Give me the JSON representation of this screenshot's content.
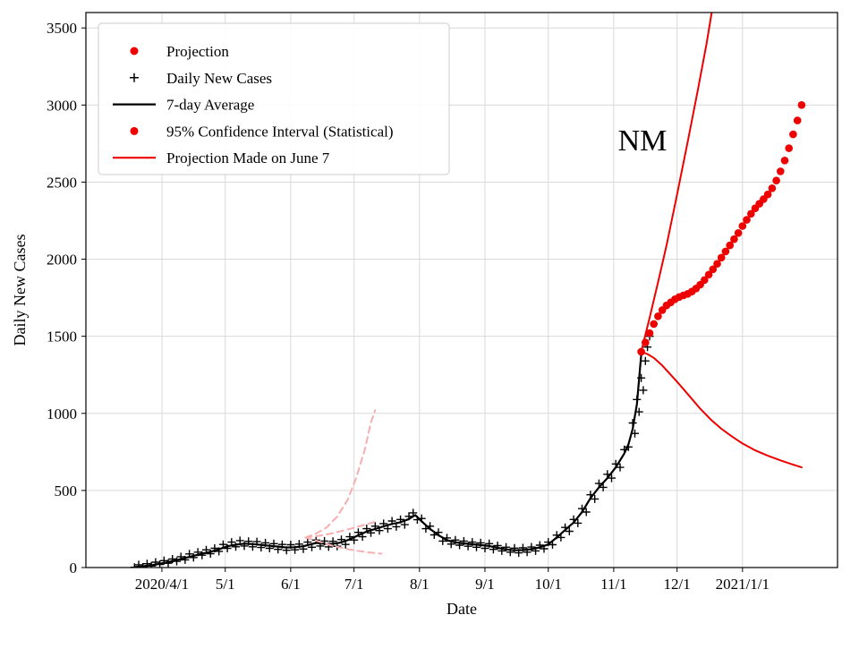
{
  "chart_data": {
    "type": "line+scatter",
    "annotation": {
      "text": "NM"
    },
    "x_axis": {
      "label": "Date",
      "range_days": [
        55,
        411
      ],
      "ticks": [
        {
          "day": 91,
          "label": "2020/4/1"
        },
        {
          "day": 121,
          "label": "5/1"
        },
        {
          "day": 152,
          "label": "6/1"
        },
        {
          "day": 182,
          "label": "7/1"
        },
        {
          "day": 213,
          "label": "8/1"
        },
        {
          "day": 244,
          "label": "9/1"
        },
        {
          "day": 274,
          "label": "10/1"
        },
        {
          "day": 305,
          "label": "11/1"
        },
        {
          "day": 335,
          "label": "12/1"
        },
        {
          "day": 366,
          "label": "2021/1/1"
        }
      ]
    },
    "y_axis": {
      "label": "Daily New Cases",
      "range": [
        0,
        3600
      ],
      "ticks": [
        0,
        500,
        1000,
        1500,
        2000,
        2500,
        3000,
        3500
      ]
    },
    "colors": {
      "red": "#ee0000",
      "pale_red": "#f7aeae",
      "black": "#000000",
      "grid": "#d9d9d9"
    },
    "legend": [
      {
        "marker": "dot",
        "color": "#ee0000",
        "label": "Projection"
      },
      {
        "marker": "plus",
        "color": "#000000",
        "label": "Daily New Cases"
      },
      {
        "marker": "line",
        "color": "#000000",
        "label": "7-day Average"
      },
      {
        "marker": "dot",
        "color": "#ee0000",
        "label": "95% Confidence Interval (Statistical)"
      },
      {
        "marker": "line",
        "color": "#ee0000",
        "label": "Projection Made on June 7"
      }
    ],
    "series": [
      {
        "name": "Daily New Cases",
        "type": "scatter-plus",
        "color": "#000000",
        "points": [
          [
            78,
            2
          ],
          [
            80,
            18
          ],
          [
            82,
            3
          ],
          [
            84,
            25
          ],
          [
            86,
            10
          ],
          [
            88,
            35
          ],
          [
            90,
            20
          ],
          [
            92,
            45
          ],
          [
            94,
            28
          ],
          [
            96,
            55
          ],
          [
            98,
            40
          ],
          [
            100,
            70
          ],
          [
            102,
            50
          ],
          [
            104,
            88
          ],
          [
            106,
            65
          ],
          [
            108,
            100
          ],
          [
            110,
            80
          ],
          [
            112,
            115
          ],
          [
            114,
            90
          ],
          [
            116,
            125
          ],
          [
            118,
            105
          ],
          [
            120,
            150
          ],
          [
            122,
            125
          ],
          [
            124,
            165
          ],
          [
            126,
            135
          ],
          [
            128,
            175
          ],
          [
            130,
            140
          ],
          [
            132,
            170
          ],
          [
            134,
            135
          ],
          [
            136,
            168
          ],
          [
            138,
            130
          ],
          [
            140,
            160
          ],
          [
            142,
            125
          ],
          [
            144,
            155
          ],
          [
            146,
            118
          ],
          [
            148,
            150
          ],
          [
            150,
            112
          ],
          [
            152,
            148
          ],
          [
            154,
            115
          ],
          [
            156,
            152
          ],
          [
            158,
            120
          ],
          [
            160,
            165
          ],
          [
            162,
            132
          ],
          [
            164,
            178
          ],
          [
            166,
            140
          ],
          [
            168,
            172
          ],
          [
            170,
            134
          ],
          [
            172,
            170
          ],
          [
            174,
            138
          ],
          [
            176,
            182
          ],
          [
            178,
            150
          ],
          [
            180,
            200
          ],
          [
            182,
            178
          ],
          [
            184,
            228
          ],
          [
            186,
            200
          ],
          [
            188,
            252
          ],
          [
            190,
            225
          ],
          [
            192,
            268
          ],
          [
            194,
            240
          ],
          [
            196,
            285
          ],
          [
            198,
            252
          ],
          [
            200,
            302
          ],
          [
            202,
            265
          ],
          [
            204,
            312
          ],
          [
            206,
            278
          ],
          [
            208,
            332
          ],
          [
            210,
            355
          ],
          [
            212,
            310
          ],
          [
            214,
            318
          ],
          [
            216,
            252
          ],
          [
            218,
            268
          ],
          [
            220,
            212
          ],
          [
            222,
            228
          ],
          [
            224,
            172
          ],
          [
            226,
            192
          ],
          [
            228,
            152
          ],
          [
            230,
            178
          ],
          [
            232,
            145
          ],
          [
            234,
            172
          ],
          [
            236,
            138
          ],
          [
            238,
            165
          ],
          [
            240,
            132
          ],
          [
            242,
            160
          ],
          [
            244,
            125
          ],
          [
            246,
            155
          ],
          [
            248,
            118
          ],
          [
            250,
            142
          ],
          [
            252,
            108
          ],
          [
            254,
            132
          ],
          [
            256,
            100
          ],
          [
            258,
            126
          ],
          [
            260,
            95
          ],
          [
            262,
            128
          ],
          [
            264,
            100
          ],
          [
            266,
            133
          ],
          [
            268,
            108
          ],
          [
            270,
            145
          ],
          [
            272,
            122
          ],
          [
            274,
            165
          ],
          [
            276,
            148
          ],
          [
            278,
            210
          ],
          [
            280,
            195
          ],
          [
            282,
            260
          ],
          [
            284,
            235
          ],
          [
            286,
            312
          ],
          [
            288,
            288
          ],
          [
            290,
            382
          ],
          [
            292,
            360
          ],
          [
            294,
            472
          ],
          [
            296,
            445
          ],
          [
            298,
            545
          ],
          [
            300,
            520
          ],
          [
            302,
            605
          ],
          [
            304,
            580
          ],
          [
            306,
            672
          ],
          [
            308,
            650
          ],
          [
            310,
            765
          ],
          [
            312,
            782
          ],
          [
            314,
            938
          ],
          [
            315,
            870
          ],
          [
            316,
            1090
          ],
          [
            317,
            1010
          ],
          [
            318,
            1230
          ],
          [
            319,
            1150
          ],
          [
            320,
            1340
          ],
          [
            321,
            1430
          ],
          [
            322,
            1500
          ]
        ]
      },
      {
        "name": "7-day Average",
        "type": "line",
        "color": "#000000",
        "width": 2.2,
        "points": [
          [
            78,
            3
          ],
          [
            82,
            8
          ],
          [
            86,
            15
          ],
          [
            90,
            25
          ],
          [
            94,
            35
          ],
          [
            98,
            48
          ],
          [
            102,
            62
          ],
          [
            106,
            76
          ],
          [
            110,
            90
          ],
          [
            114,
            102
          ],
          [
            118,
            118
          ],
          [
            122,
            138
          ],
          [
            126,
            148
          ],
          [
            130,
            155
          ],
          [
            134,
            152
          ],
          [
            138,
            147
          ],
          [
            142,
            141
          ],
          [
            146,
            136
          ],
          [
            150,
            130
          ],
          [
            154,
            132
          ],
          [
            158,
            138
          ],
          [
            162,
            152
          ],
          [
            164,
            160
          ],
          [
            168,
            154
          ],
          [
            172,
            153
          ],
          [
            176,
            163
          ],
          [
            180,
            183
          ],
          [
            184,
            209
          ],
          [
            188,
            234
          ],
          [
            192,
            250
          ],
          [
            196,
            267
          ],
          [
            200,
            283
          ],
          [
            204,
            294
          ],
          [
            208,
            315
          ],
          [
            211,
            340
          ],
          [
            214,
            300
          ],
          [
            218,
            250
          ],
          [
            222,
            210
          ],
          [
            226,
            177
          ],
          [
            230,
            163
          ],
          [
            234,
            157
          ],
          [
            238,
            151
          ],
          [
            242,
            146
          ],
          [
            246,
            140
          ],
          [
            250,
            128
          ],
          [
            254,
            118
          ],
          [
            258,
            112
          ],
          [
            262,
            113
          ],
          [
            266,
            119
          ],
          [
            270,
            131
          ],
          [
            274,
            150
          ],
          [
            278,
            195
          ],
          [
            282,
            243
          ],
          [
            286,
            292
          ],
          [
            290,
            360
          ],
          [
            294,
            450
          ],
          [
            298,
            520
          ],
          [
            302,
            580
          ],
          [
            306,
            650
          ],
          [
            310,
            740
          ],
          [
            312,
            800
          ],
          [
            314,
            900
          ],
          [
            316,
            1060
          ],
          [
            318,
            1380
          ]
        ]
      },
      {
        "name": "Projection",
        "type": "scatter-dot",
        "color": "#ee0000",
        "points": [
          [
            318,
            1400
          ],
          [
            320,
            1460
          ],
          [
            322,
            1520
          ],
          [
            324,
            1580
          ],
          [
            326,
            1630
          ],
          [
            328,
            1670
          ],
          [
            330,
            1700
          ],
          [
            332,
            1720
          ],
          [
            334,
            1740
          ],
          [
            336,
            1755
          ],
          [
            338,
            1765
          ],
          [
            340,
            1775
          ],
          [
            342,
            1790
          ],
          [
            344,
            1810
          ],
          [
            346,
            1835
          ],
          [
            348,
            1865
          ],
          [
            350,
            1900
          ],
          [
            352,
            1935
          ],
          [
            354,
            1970
          ],
          [
            356,
            2010
          ],
          [
            358,
            2050
          ],
          [
            360,
            2090
          ],
          [
            362,
            2130
          ],
          [
            364,
            2170
          ],
          [
            366,
            2215
          ],
          [
            368,
            2255
          ],
          [
            370,
            2295
          ],
          [
            372,
            2330
          ],
          [
            374,
            2360
          ],
          [
            376,
            2390
          ],
          [
            378,
            2420
          ],
          [
            380,
            2460
          ],
          [
            382,
            2510
          ],
          [
            384,
            2570
          ],
          [
            386,
            2640
          ],
          [
            388,
            2720
          ],
          [
            390,
            2810
          ],
          [
            392,
            2900
          ],
          [
            394,
            3000
          ]
        ]
      },
      {
        "name": "95% Confidence Interval (Statistical) upper",
        "type": "line",
        "color": "#ee0000",
        "width": 2,
        "points": [
          [
            318,
            1400
          ],
          [
            322,
            1620
          ],
          [
            326,
            1850
          ],
          [
            330,
            2090
          ],
          [
            335,
            2420
          ],
          [
            340,
            2760
          ],
          [
            345,
            3110
          ],
          [
            349,
            3400
          ],
          [
            352,
            3650
          ]
        ]
      },
      {
        "name": "95% Confidence Interval (Statistical) lower",
        "type": "line",
        "color": "#ee0000",
        "width": 2,
        "points": [
          [
            318,
            1400
          ],
          [
            321,
            1385
          ],
          [
            324,
            1360
          ],
          [
            328,
            1310
          ],
          [
            332,
            1250
          ],
          [
            336,
            1190
          ],
          [
            341,
            1110
          ],
          [
            346,
            1030
          ],
          [
            351,
            960
          ],
          [
            356,
            900
          ],
          [
            361,
            850
          ],
          [
            366,
            805
          ],
          [
            372,
            760
          ],
          [
            378,
            725
          ],
          [
            384,
            695
          ],
          [
            389,
            672
          ],
          [
            394,
            650
          ]
        ]
      },
      {
        "name": "Projection Made on June 7 upper",
        "type": "dashed-line",
        "color": "#f7aeae",
        "width": 2,
        "points": [
          [
            159,
            195
          ],
          [
            164,
            220
          ],
          [
            169,
            260
          ],
          [
            174,
            330
          ],
          [
            179,
            440
          ],
          [
            183,
            580
          ],
          [
            187,
            760
          ],
          [
            190,
            940
          ],
          [
            192,
            1020
          ]
        ]
      },
      {
        "name": "Projection Made on June 7 median",
        "type": "dashed-line",
        "color": "#f7aeae",
        "width": 2,
        "points": [
          [
            159,
            195
          ],
          [
            165,
            205
          ],
          [
            171,
            220
          ],
          [
            177,
            240
          ],
          [
            183,
            262
          ],
          [
            189,
            285
          ],
          [
            193,
            300
          ]
        ]
      },
      {
        "name": "Projection Made on June 7 lower",
        "type": "dashed-line",
        "color": "#f7aeae",
        "width": 2,
        "points": [
          [
            159,
            195
          ],
          [
            165,
            170
          ],
          [
            171,
            145
          ],
          [
            177,
            125
          ],
          [
            183,
            110
          ],
          [
            189,
            98
          ],
          [
            195,
            90
          ]
        ]
      }
    ]
  }
}
